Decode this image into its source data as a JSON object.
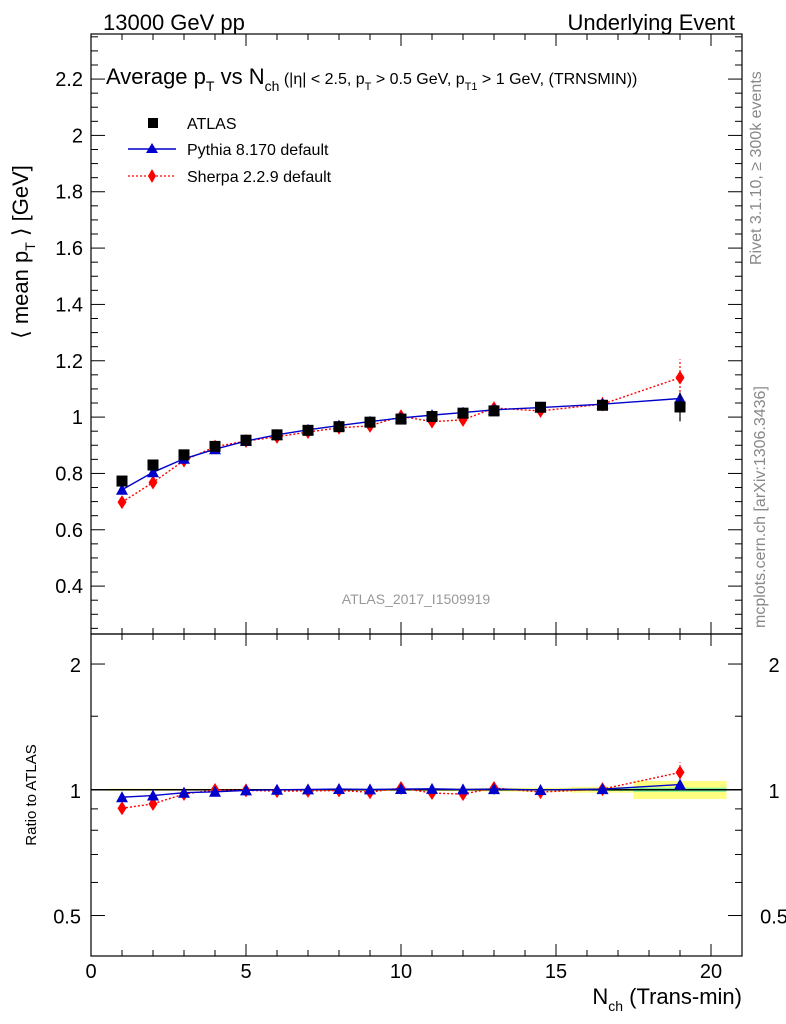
{
  "header": {
    "left": "13000 GeV pp",
    "right": "Underlying Event"
  },
  "side_text": {
    "rivet": "Rivet 3.1.10, ≥ 300k events",
    "mcplots": "mcplots.cern.ch [arXiv:1306.3436]"
  },
  "watermark": "ATLAS_2017_I1509919",
  "chart_data": {
    "type": "scatter",
    "title": {
      "a": "Average p",
      "a_sub": "T",
      "b": " vs N",
      "b_sub": "ch",
      "c": " (|η| < 2.5, p",
      "c_sub": "T",
      "d": " > 0.5 GeV, p",
      "d_sub": "T1",
      "e": " > 1 GeV, (TRNSMIN))"
    },
    "ylabel": {
      "a": "⟨ mean p",
      "a_sub": "T",
      "b": " ⟩ [GeV]"
    },
    "xlabel": {
      "a": "N",
      "a_sub": "ch",
      "b": " (Trans-min)"
    },
    "ratio_ylabel": "Ratio to ATLAS",
    "xlim": [
      0,
      21
    ],
    "ylim": [
      0.23,
      2.36
    ],
    "ratio_ylim": [
      0.4,
      2.36
    ],
    "ratio_log": true,
    "x_ticks": [
      "0",
      "5",
      "10",
      "15",
      "20"
    ],
    "x_tick_values": [
      0,
      5,
      10,
      15,
      20
    ],
    "y_ticks": [
      "0.4",
      "0.6",
      "0.8",
      "1",
      "1.2",
      "1.4",
      "1.6",
      "1.8",
      "2",
      "2.2"
    ],
    "y_tick_values": [
      0.4,
      0.6,
      0.8,
      1.0,
      1.2,
      1.4,
      1.6,
      1.8,
      2.0,
      2.2
    ],
    "ratio_ticks": [
      "0.5",
      "1",
      "2"
    ],
    "ratio_tick_values": [
      0.5,
      1,
      2
    ],
    "legend_position": "top-left",
    "colors": {
      "atlas": "#000000",
      "pythia": "#0000cc",
      "sherpa": "#ff0000",
      "band_green": "#7ff29a",
      "band_yellow": "#ffff80"
    },
    "x": [
      1,
      2,
      3,
      4,
      5,
      6,
      7,
      8,
      9,
      10,
      11,
      12,
      13,
      14.5,
      16.5,
      19
    ],
    "bin_edges": [
      0.5,
      1.5,
      2.5,
      3.5,
      4.5,
      5.5,
      6.5,
      7.5,
      8.5,
      9.5,
      10.5,
      11.5,
      12.5,
      13.5,
      15.5,
      17.5,
      20.5
    ],
    "series": [
      {
        "name": "ATLAS",
        "values": [
          0.773,
          0.83,
          0.866,
          0.896,
          0.918,
          0.937,
          0.953,
          0.966,
          0.982,
          0.993,
          1.002,
          1.014,
          1.022,
          1.035,
          1.042,
          1.036
        ],
        "stat_err": [
          0.002,
          0.002,
          0.002,
          0.002,
          0.002,
          0.002,
          0.002,
          0.003,
          0.003,
          0.003,
          0.004,
          0.004,
          0.005,
          0.005,
          0.007,
          0.012
        ],
        "syst_err": [
          0.004,
          0.004,
          0.004,
          0.004,
          0.004,
          0.004,
          0.004,
          0.005,
          0.005,
          0.006,
          0.006,
          0.007,
          0.008,
          0.01,
          0.015,
          0.05
        ]
      },
      {
        "name": "Pythia 8.170 default",
        "values": [
          0.742,
          0.804,
          0.852,
          0.886,
          0.915,
          0.937,
          0.955,
          0.97,
          0.984,
          0.997,
          1.007,
          1.016,
          1.026,
          1.034,
          1.046,
          1.066
        ],
        "errors": [
          0.004,
          0.004,
          0.004,
          0.004,
          0.004,
          0.004,
          0.004,
          0.004,
          0.005,
          0.005,
          0.006,
          0.007,
          0.008,
          0.009,
          0.012,
          0.02
        ]
      },
      {
        "name": "Sherpa 2.2.9 default",
        "values": [
          0.698,
          0.768,
          0.846,
          0.895,
          0.915,
          0.93,
          0.947,
          0.962,
          0.969,
          1.003,
          0.984,
          0.99,
          1.032,
          1.022,
          1.046,
          1.14
        ],
        "errors": [
          0.005,
          0.005,
          0.005,
          0.005,
          0.005,
          0.005,
          0.006,
          0.006,
          0.007,
          0.009,
          0.01,
          0.011,
          0.012,
          0.013,
          0.025,
          0.065
        ]
      }
    ]
  }
}
